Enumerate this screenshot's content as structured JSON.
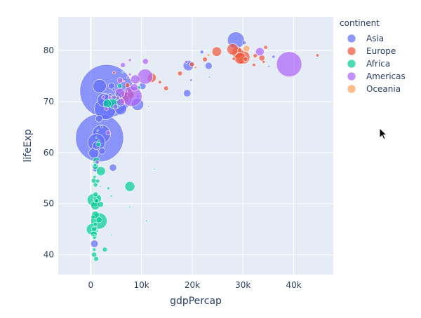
{
  "chart_data": {
    "type": "scatter",
    "xlabel": "gdpPercap",
    "ylabel": "lifeExp",
    "xlim": [
      -6400,
      47800
    ],
    "ylim": [
      36.1,
      86.6
    ],
    "xticks": [
      0,
      10000,
      20000,
      30000,
      40000
    ],
    "xtick_labels": [
      "0",
      "10k",
      "20k",
      "30k",
      "40k"
    ],
    "yticks": [
      40,
      50,
      60,
      70,
      80
    ],
    "ytick_labels": [
      "40",
      "50",
      "60",
      "70",
      "80"
    ],
    "grid": true,
    "legend": {
      "title": "continent",
      "placement": "right"
    },
    "size_field": "pop",
    "point_format": [
      "gdpPercap",
      "lifeExp",
      "pop_millions"
    ],
    "series": [
      {
        "name": "Asia",
        "color": "#636efa",
        "points": [
          [
            3119,
            72.03,
            1280
          ],
          [
            1747,
            62.88,
            1034
          ],
          [
            2874,
            68.59,
            211
          ],
          [
            28605,
            82.0,
            127
          ],
          [
            2093,
            63.61,
            153
          ],
          [
            1136,
            62.01,
            135
          ],
          [
            2651,
            70.3,
            82
          ],
          [
            1764,
            73.02,
            80.9
          ],
          [
            9241,
            69.45,
            66
          ],
          [
            5913,
            68.56,
            62.8
          ],
          [
            611,
            59.91,
            45.6
          ],
          [
            19234,
            77.05,
            48
          ],
          [
            727,
            42.13,
            25.3
          ],
          [
            1057,
            61.34,
            25.9
          ],
          [
            4391,
            57.05,
            24
          ],
          [
            19014,
            71.63,
            24.5
          ],
          [
            10207,
            73.04,
            22.7
          ],
          [
            1647,
            66.66,
            22.2
          ],
          [
            23235,
            76.99,
            22.5
          ],
          [
            3015,
            70.82,
            19.6
          ],
          [
            2235,
            60.31,
            18.7
          ],
          [
            4090,
            73.05,
            17.2
          ],
          [
            896,
            56.75,
            12.9
          ],
          [
            30209,
            81.5,
            6.76
          ],
          [
            21906,
            79.7,
            6.03
          ],
          [
            3845,
            71.26,
            5.3
          ],
          [
            36023,
            78.77,
            4.2
          ],
          [
            9313,
            71.03,
            3.7
          ],
          [
            2140,
            65.03,
            2.67
          ],
          [
            19775,
            74.19,
            2.7
          ],
          [
            35110,
            76.9,
            2.1
          ],
          [
            23404,
            74.8,
            0.66
          ],
          [
            4516,
            72.37,
            3.4
          ]
        ]
      },
      {
        "name": "Europe",
        "color": "#EF553B",
        "points": [
          [
            30036,
            78.67,
            82.4
          ],
          [
            6508,
            70.85,
            67.3
          ],
          [
            28926,
            79.59,
            59.9
          ],
          [
            29479,
            78.47,
            59.9
          ],
          [
            27968,
            80.24,
            57.9
          ],
          [
            24835,
            79.78,
            40.2
          ],
          [
            12002,
            74.67,
            38.6
          ],
          [
            7885,
            71.32,
            22.4
          ],
          [
            33725,
            78.53,
            16.1
          ],
          [
            22514,
            78.26,
            10.6
          ],
          [
            30486,
            78.32,
            10.3
          ],
          [
            17596,
            75.51,
            10.3
          ],
          [
            19971,
            77.29,
            10.4
          ],
          [
            14843,
            72.59,
            10.1
          ],
          [
            29342,
            80.04,
            8.95
          ],
          [
            7236,
            73.21,
            10.1
          ],
          [
            32418,
            78.98,
            8.15
          ],
          [
            7697,
            72.14,
            7.66
          ],
          [
            34481,
            80.62,
            7.36
          ],
          [
            32166,
            77.18,
            5.37
          ],
          [
            13638,
            73.8,
            5.41
          ],
          [
            28205,
            78.37,
            5.19
          ],
          [
            44684,
            79.05,
            4.54
          ],
          [
            11628,
            74.88,
            4.48
          ],
          [
            34077,
            77.78,
            3.88
          ],
          [
            6019,
            74.09,
            4.17
          ],
          [
            4604,
            75.65,
            3.51
          ],
          [
            20660,
            76.66,
            2.01
          ],
          [
            6557,
            73.98,
            0.72
          ],
          [
            31163,
            80.5,
            0.29
          ]
        ]
      },
      {
        "name": "Africa",
        "color": "#00cc96",
        "points": [
          [
            1615,
            46.61,
            119.9
          ],
          [
            4755,
            69.8,
            73.3
          ],
          [
            531,
            50.73,
            67.9
          ],
          [
            241,
            44.97,
            55.4
          ],
          [
            7711,
            53.37,
            44.4
          ],
          [
            1993,
            56.37,
            37.1
          ],
          [
            899,
            49.65,
            34.6
          ],
          [
            1288,
            50.99,
            31.4
          ],
          [
            3258,
            69.62,
            31.2
          ],
          [
            5288,
            70.99,
            31.3
          ],
          [
            928,
            47.81,
            24.7
          ],
          [
            1111,
            58.45,
            20.6
          ],
          [
            633,
            44.03,
            18.5
          ],
          [
            895,
            57.29,
            16.5
          ],
          [
            1934,
            49.86,
            15.9
          ],
          [
            1649,
            46.83,
            16.3
          ],
          [
            2773,
            41.0,
            10.9
          ],
          [
            665,
            45.0,
            11.8
          ],
          [
            672,
            39.99,
            11.9
          ],
          [
            951,
            51.82,
            10.6
          ],
          [
            601,
            54.5,
            11.1
          ],
          [
            1038,
            50.65,
            12.3
          ],
          [
            1520,
            61.6,
            10.9
          ],
          [
            1071,
            39.19,
            10.6
          ],
          [
            5723,
            73.04,
            9.77
          ],
          [
            1156,
            50.53,
            8.8
          ],
          [
            786,
            43.41,
            7.85
          ],
          [
            945,
            53.68,
            8.8
          ],
          [
            1373,
            54.41,
            7.0
          ],
          [
            882,
            45.94,
            7.75
          ],
          [
            446,
            47.36,
            7.0
          ],
          [
            9535,
            72.74,
            5.37
          ],
          [
            886,
            57.56,
            4.98
          ],
          [
            699,
            41.0,
            5.36
          ],
          [
            765,
            55.24,
            4.41
          ],
          [
            738,
            43.31,
            4.05
          ],
          [
            531,
            43.75,
            2.81
          ],
          [
            1579,
            62.25,
            2.83
          ],
          [
            1275,
            44.59,
            2.05
          ],
          [
            4073,
            51.48,
            1.97
          ],
          [
            11003,
            46.63,
            1.63
          ],
          [
            12521,
            56.76,
            1.3
          ],
          [
            660,
            58.04,
            1.46
          ],
          [
            9022,
            71.95,
            1.2
          ],
          [
            4128,
            43.87,
            1.13
          ],
          [
            575,
            45.5,
            1.33
          ],
          [
            1908,
            53.37,
            0.45
          ],
          [
            7703,
            49.35,
            0.5
          ],
          [
            1075,
            62.97,
            0.61
          ],
          [
            6316,
            75.74,
            0.74
          ],
          [
            3484,
            53.0,
            3.33
          ],
          [
            1353,
            64.34,
            0.17
          ]
        ]
      },
      {
        "name": "Americas",
        "color": "#ab63fa",
        "points": [
          [
            39097,
            77.31,
            287.7
          ],
          [
            8131,
            71.01,
            179.9
          ],
          [
            10742,
            74.9,
            102.5
          ],
          [
            5755,
            71.68,
            41.0
          ],
          [
            8798,
            74.34,
            38.3
          ],
          [
            33329,
            79.77,
            31.9
          ],
          [
            5909,
            69.9,
            26.8
          ],
          [
            8605,
            72.77,
            24.3
          ],
          [
            10779,
            77.86,
            15.5
          ],
          [
            5774,
            74.17,
            12.9
          ],
          [
            4858,
            68.98,
            11.2
          ],
          [
            6341,
            77.16,
            11.2
          ],
          [
            1270,
            58.14,
            7.6
          ],
          [
            4564,
            70.85,
            8.65
          ],
          [
            3413,
            63.88,
            8.45
          ],
          [
            3099,
            68.57,
            6.25
          ],
          [
            5352,
            70.73,
            6.35
          ],
          [
            3783,
            70.76,
            5.88
          ],
          [
            2474,
            70.84,
            5.15
          ],
          [
            7723,
            78.12,
            3.83
          ],
          [
            18856,
            77.78,
            3.86
          ],
          [
            7727,
            75.31,
            3.36
          ],
          [
            7357,
            74.71,
            2.99
          ],
          [
            6995,
            72.05,
            2.66
          ],
          [
            11461,
            68.98,
            1.1
          ]
        ]
      },
      {
        "name": "Oceania",
        "color": "#FFA15A",
        "points": [
          [
            30688,
            80.37,
            19.5
          ],
          [
            23190,
            79.11,
            3.9
          ]
        ]
      }
    ]
  }
}
